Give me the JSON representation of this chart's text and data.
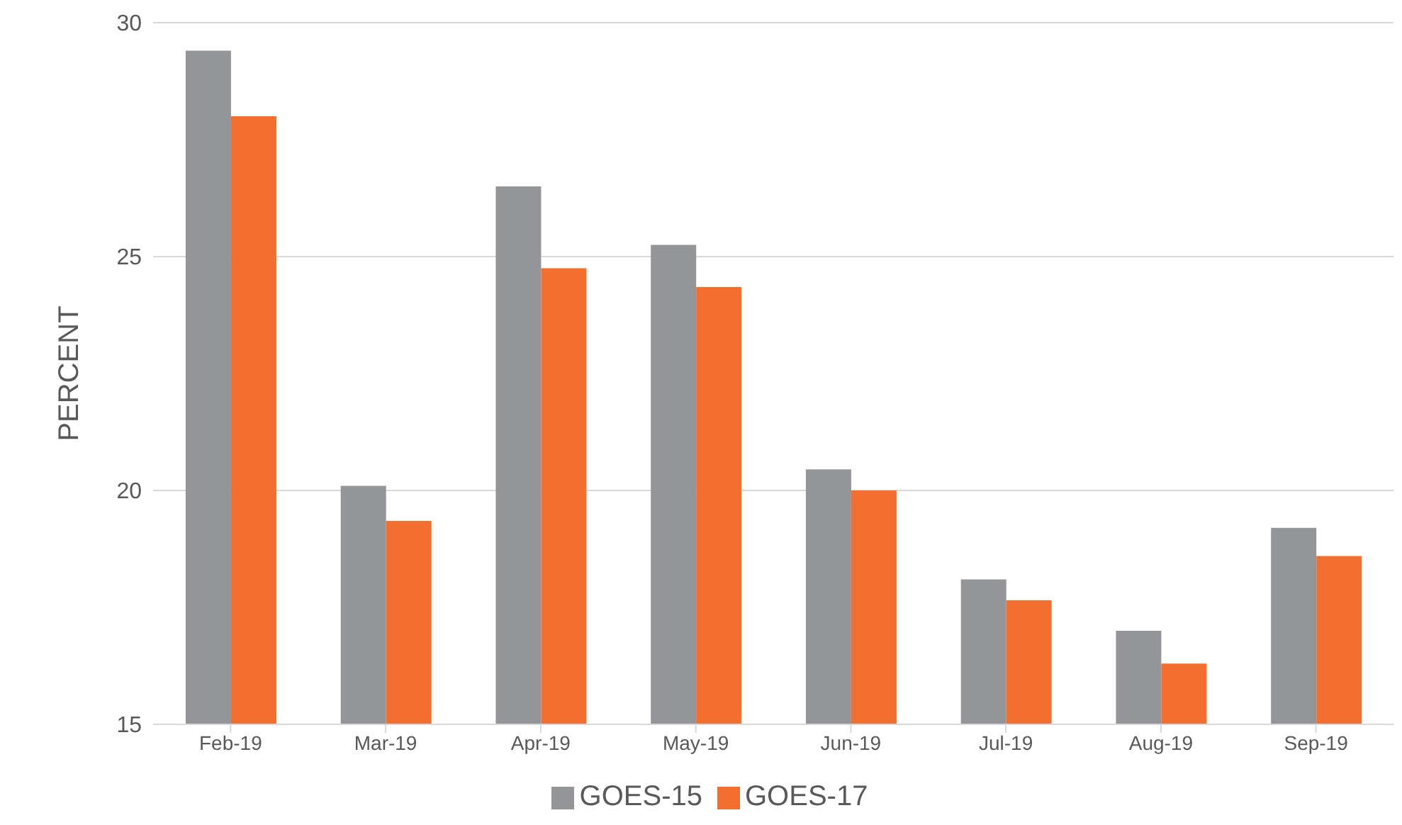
{
  "chart_data": {
    "type": "bar",
    "ylabel": "PERCENT",
    "categories": [
      "Feb-19",
      "Mar-19",
      "Apr-19",
      "May-19",
      "Jun-19",
      "Jul-19",
      "Aug-19",
      "Sep-19"
    ],
    "series": [
      {
        "name": "GOES-15",
        "color": "#939598",
        "values": [
          29.4,
          20.1,
          26.5,
          25.25,
          20.45,
          18.1,
          17.0,
          19.2
        ]
      },
      {
        "name": "GOES-17",
        "color": "#f26f30",
        "values": [
          28.0,
          19.35,
          24.75,
          24.35,
          20.0,
          17.65,
          16.3,
          18.6
        ]
      }
    ],
    "ylim": [
      15,
      30
    ],
    "yticks": [
      15,
      20,
      25,
      30
    ],
    "grid": "y",
    "legend": "bottom"
  }
}
